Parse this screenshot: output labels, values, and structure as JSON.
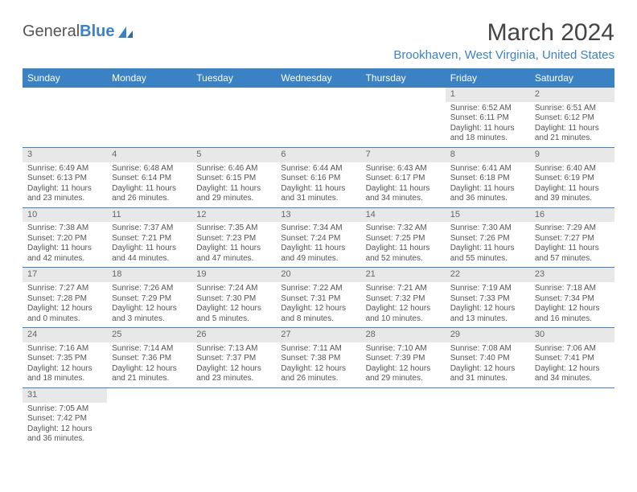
{
  "logo": {
    "part1": "General",
    "part2": "Blue"
  },
  "title": "March 2024",
  "location": "Brookhaven, West Virginia, United States",
  "weekdays": [
    "Sunday",
    "Monday",
    "Tuesday",
    "Wednesday",
    "Thursday",
    "Friday",
    "Saturday"
  ],
  "colors": {
    "accent": "#3b82c4",
    "header_text": "#444",
    "cell_text": "#555",
    "daynum_bg": "#e8e8e8",
    "background": "#ffffff"
  },
  "typography": {
    "title_fontsize": 30,
    "location_fontsize": 15,
    "weekday_fontsize": 12,
    "cell_fontsize": 10
  },
  "weeks": [
    [
      {
        "day": "",
        "lines": []
      },
      {
        "day": "",
        "lines": []
      },
      {
        "day": "",
        "lines": []
      },
      {
        "day": "",
        "lines": []
      },
      {
        "day": "",
        "lines": []
      },
      {
        "day": "1",
        "lines": [
          "Sunrise: 6:52 AM",
          "Sunset: 6:11 PM",
          "Daylight: 11 hours",
          "and 18 minutes."
        ]
      },
      {
        "day": "2",
        "lines": [
          "Sunrise: 6:51 AM",
          "Sunset: 6:12 PM",
          "Daylight: 11 hours",
          "and 21 minutes."
        ]
      }
    ],
    [
      {
        "day": "3",
        "lines": [
          "Sunrise: 6:49 AM",
          "Sunset: 6:13 PM",
          "Daylight: 11 hours",
          "and 23 minutes."
        ]
      },
      {
        "day": "4",
        "lines": [
          "Sunrise: 6:48 AM",
          "Sunset: 6:14 PM",
          "Daylight: 11 hours",
          "and 26 minutes."
        ]
      },
      {
        "day": "5",
        "lines": [
          "Sunrise: 6:46 AM",
          "Sunset: 6:15 PM",
          "Daylight: 11 hours",
          "and 29 minutes."
        ]
      },
      {
        "day": "6",
        "lines": [
          "Sunrise: 6:44 AM",
          "Sunset: 6:16 PM",
          "Daylight: 11 hours",
          "and 31 minutes."
        ]
      },
      {
        "day": "7",
        "lines": [
          "Sunrise: 6:43 AM",
          "Sunset: 6:17 PM",
          "Daylight: 11 hours",
          "and 34 minutes."
        ]
      },
      {
        "day": "8",
        "lines": [
          "Sunrise: 6:41 AM",
          "Sunset: 6:18 PM",
          "Daylight: 11 hours",
          "and 36 minutes."
        ]
      },
      {
        "day": "9",
        "lines": [
          "Sunrise: 6:40 AM",
          "Sunset: 6:19 PM",
          "Daylight: 11 hours",
          "and 39 minutes."
        ]
      }
    ],
    [
      {
        "day": "10",
        "lines": [
          "Sunrise: 7:38 AM",
          "Sunset: 7:20 PM",
          "Daylight: 11 hours",
          "and 42 minutes."
        ]
      },
      {
        "day": "11",
        "lines": [
          "Sunrise: 7:37 AM",
          "Sunset: 7:21 PM",
          "Daylight: 11 hours",
          "and 44 minutes."
        ]
      },
      {
        "day": "12",
        "lines": [
          "Sunrise: 7:35 AM",
          "Sunset: 7:23 PM",
          "Daylight: 11 hours",
          "and 47 minutes."
        ]
      },
      {
        "day": "13",
        "lines": [
          "Sunrise: 7:34 AM",
          "Sunset: 7:24 PM",
          "Daylight: 11 hours",
          "and 49 minutes."
        ]
      },
      {
        "day": "14",
        "lines": [
          "Sunrise: 7:32 AM",
          "Sunset: 7:25 PM",
          "Daylight: 11 hours",
          "and 52 minutes."
        ]
      },
      {
        "day": "15",
        "lines": [
          "Sunrise: 7:30 AM",
          "Sunset: 7:26 PM",
          "Daylight: 11 hours",
          "and 55 minutes."
        ]
      },
      {
        "day": "16",
        "lines": [
          "Sunrise: 7:29 AM",
          "Sunset: 7:27 PM",
          "Daylight: 11 hours",
          "and 57 minutes."
        ]
      }
    ],
    [
      {
        "day": "17",
        "lines": [
          "Sunrise: 7:27 AM",
          "Sunset: 7:28 PM",
          "Daylight: 12 hours",
          "and 0 minutes."
        ]
      },
      {
        "day": "18",
        "lines": [
          "Sunrise: 7:26 AM",
          "Sunset: 7:29 PM",
          "Daylight: 12 hours",
          "and 3 minutes."
        ]
      },
      {
        "day": "19",
        "lines": [
          "Sunrise: 7:24 AM",
          "Sunset: 7:30 PM",
          "Daylight: 12 hours",
          "and 5 minutes."
        ]
      },
      {
        "day": "20",
        "lines": [
          "Sunrise: 7:22 AM",
          "Sunset: 7:31 PM",
          "Daylight: 12 hours",
          "and 8 minutes."
        ]
      },
      {
        "day": "21",
        "lines": [
          "Sunrise: 7:21 AM",
          "Sunset: 7:32 PM",
          "Daylight: 12 hours",
          "and 10 minutes."
        ]
      },
      {
        "day": "22",
        "lines": [
          "Sunrise: 7:19 AM",
          "Sunset: 7:33 PM",
          "Daylight: 12 hours",
          "and 13 minutes."
        ]
      },
      {
        "day": "23",
        "lines": [
          "Sunrise: 7:18 AM",
          "Sunset: 7:34 PM",
          "Daylight: 12 hours",
          "and 16 minutes."
        ]
      }
    ],
    [
      {
        "day": "24",
        "lines": [
          "Sunrise: 7:16 AM",
          "Sunset: 7:35 PM",
          "Daylight: 12 hours",
          "and 18 minutes."
        ]
      },
      {
        "day": "25",
        "lines": [
          "Sunrise: 7:14 AM",
          "Sunset: 7:36 PM",
          "Daylight: 12 hours",
          "and 21 minutes."
        ]
      },
      {
        "day": "26",
        "lines": [
          "Sunrise: 7:13 AM",
          "Sunset: 7:37 PM",
          "Daylight: 12 hours",
          "and 23 minutes."
        ]
      },
      {
        "day": "27",
        "lines": [
          "Sunrise: 7:11 AM",
          "Sunset: 7:38 PM",
          "Daylight: 12 hours",
          "and 26 minutes."
        ]
      },
      {
        "day": "28",
        "lines": [
          "Sunrise: 7:10 AM",
          "Sunset: 7:39 PM",
          "Daylight: 12 hours",
          "and 29 minutes."
        ]
      },
      {
        "day": "29",
        "lines": [
          "Sunrise: 7:08 AM",
          "Sunset: 7:40 PM",
          "Daylight: 12 hours",
          "and 31 minutes."
        ]
      },
      {
        "day": "30",
        "lines": [
          "Sunrise: 7:06 AM",
          "Sunset: 7:41 PM",
          "Daylight: 12 hours",
          "and 34 minutes."
        ]
      }
    ],
    [
      {
        "day": "31",
        "lines": [
          "Sunrise: 7:05 AM",
          "Sunset: 7:42 PM",
          "Daylight: 12 hours",
          "and 36 minutes."
        ]
      },
      {
        "day": "",
        "lines": []
      },
      {
        "day": "",
        "lines": []
      },
      {
        "day": "",
        "lines": []
      },
      {
        "day": "",
        "lines": []
      },
      {
        "day": "",
        "lines": []
      },
      {
        "day": "",
        "lines": []
      }
    ]
  ]
}
